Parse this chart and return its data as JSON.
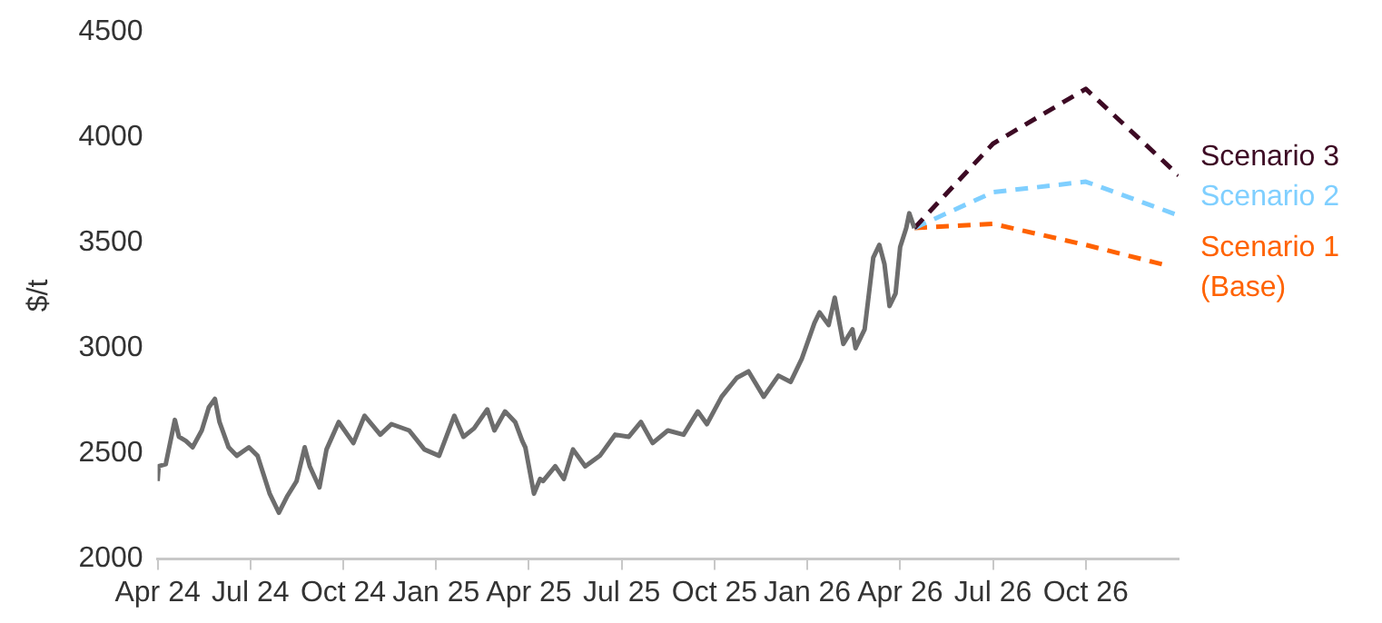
{
  "chart_data": {
    "type": "line",
    "ylabel": "$/t",
    "ylim": [
      2000,
      4500
    ],
    "yticks": [
      2000,
      2500,
      3000,
      3500,
      4000,
      4500
    ],
    "xlim": [
      "2024-04",
      "2027-01"
    ],
    "xticks": [
      {
        "value": "2024-04",
        "label": "Apr 24"
      },
      {
        "value": "2024-07",
        "label": "Jul 24"
      },
      {
        "value": "2024-10",
        "label": "Oct 24"
      },
      {
        "value": "2025-01",
        "label": "Jan 25"
      },
      {
        "value": "2025-04",
        "label": "Apr 25"
      },
      {
        "value": "2025-07",
        "label": "Jul 25"
      },
      {
        "value": "2025-10",
        "label": "Oct 25"
      },
      {
        "value": "2026-01",
        "label": "Jan 26"
      },
      {
        "value": "2026-04",
        "label": "Apr 26"
      },
      {
        "value": "2026-07",
        "label": "Jul 26"
      },
      {
        "value": "2026-10",
        "label": "Oct 26"
      }
    ],
    "grid": false,
    "legend": false,
    "marker": "none",
    "series": [
      {
        "color": "#6d6d6d",
        "line_style": "solid",
        "x": [
          "2024-04-01",
          "2024-04-02",
          "2024-04-09",
          "2024-04-18",
          "2024-04-22",
          "2024-04-29",
          "2024-05-05",
          "2024-05-14",
          "2024-05-21",
          "2024-05-27",
          "2024-06-01",
          "2024-06-10",
          "2024-06-18",
          "2024-06-30",
          "2024-07-08",
          "2024-07-20",
          "2024-07-29",
          "2024-08-07",
          "2024-08-16",
          "2024-08-24",
          "2024-08-29",
          "2024-09-08",
          "2024-09-15",
          "2024-09-27",
          "2024-10-11",
          "2024-10-22",
          "2024-11-07",
          "2024-11-18",
          "2024-12-05",
          "2024-12-20",
          "2025-01-04",
          "2025-01-19",
          "2025-01-28",
          "2025-02-08",
          "2025-02-21",
          "2025-02-28",
          "2025-03-08",
          "2025-03-18",
          "2025-03-25",
          "2025-03-28",
          "2025-04-06",
          "2025-04-12",
          "2025-04-15",
          "2025-04-27",
          "2025-05-05",
          "2025-05-14",
          "2025-05-26",
          "2025-06-10",
          "2025-06-25",
          "2025-07-08",
          "2025-07-20",
          "2025-08-01",
          "2025-08-16",
          "2025-09-01",
          "2025-09-15",
          "2025-09-24",
          "2025-10-08",
          "2025-10-23",
          "2025-11-04",
          "2025-11-19",
          "2025-12-03",
          "2025-12-15",
          "2025-12-26",
          "2026-01-08",
          "2026-01-13",
          "2026-01-22",
          "2026-01-28",
          "2026-02-06",
          "2026-02-15",
          "2026-02-18",
          "2026-02-27",
          "2026-03-05",
          "2026-03-11",
          "2026-03-16",
          "2026-03-21",
          "2026-03-27",
          "2026-04-01",
          "2026-04-07",
          "2026-04-10",
          "2026-04-15"
        ],
        "values": [
          2370,
          2440,
          2450,
          2660,
          2580,
          2560,
          2530,
          2610,
          2720,
          2760,
          2650,
          2530,
          2490,
          2530,
          2490,
          2310,
          2220,
          2300,
          2370,
          2530,
          2440,
          2340,
          2520,
          2650,
          2550,
          2680,
          2590,
          2640,
          2610,
          2520,
          2490,
          2680,
          2580,
          2620,
          2710,
          2610,
          2700,
          2650,
          2560,
          2530,
          2310,
          2380,
          2370,
          2440,
          2380,
          2520,
          2440,
          2490,
          2590,
          2580,
          2650,
          2550,
          2610,
          2590,
          2700,
          2640,
          2770,
          2860,
          2890,
          2770,
          2870,
          2840,
          2950,
          3120,
          3170,
          3110,
          3240,
          3020,
          3090,
          3000,
          3090,
          3430,
          3490,
          3400,
          3200,
          3260,
          3480,
          3570,
          3640,
          3570
        ]
      },
      {
        "name": "Scenario 3",
        "color": "#3d0a24",
        "line_style": "dashed",
        "x": [
          "2026-04-15",
          "2026-07",
          "2026-10",
          "2027-01"
        ],
        "values": [
          3570,
          3970,
          4230,
          3820
        ]
      },
      {
        "name": "Scenario 2",
        "color": "#7fcfff",
        "line_style": "dashed",
        "x": [
          "2026-04-15",
          "2026-07",
          "2026-10",
          "2027-01"
        ],
        "values": [
          3570,
          3740,
          3790,
          3630
        ]
      },
      {
        "name": "Scenario 1 (Base)",
        "color": "#ff6200",
        "line_style": "dashed",
        "x": [
          "2026-04-15",
          "2026-07",
          "2026-10",
          "2026-12-22"
        ],
        "values": [
          3570,
          3590,
          3490,
          3390
        ]
      }
    ]
  }
}
